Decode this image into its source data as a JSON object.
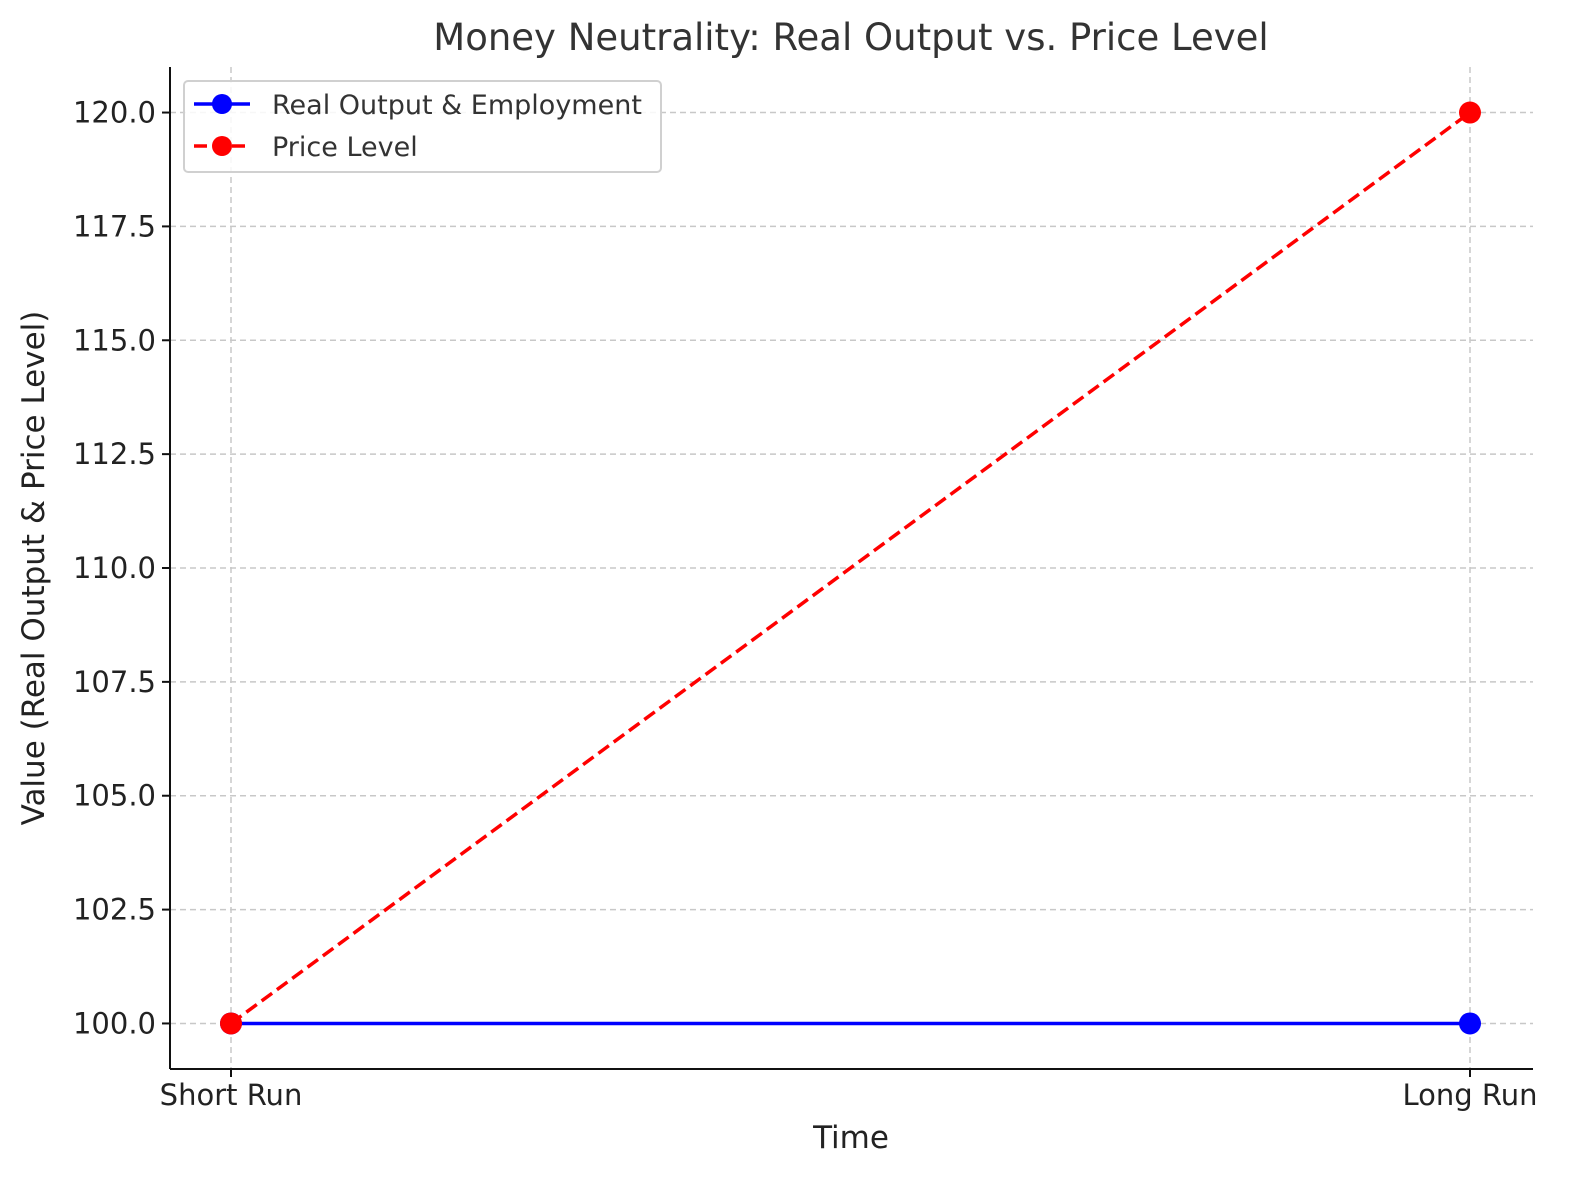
{
  "chart_data": {
    "type": "line",
    "title": "Money Neutrality: Real Output vs. Price Level",
    "xlabel": "Time",
    "ylabel": "Value (Real Output & Price Level)",
    "categories": [
      "Short Run",
      "Long Run"
    ],
    "ylim": [
      99.0,
      121.0
    ],
    "yticks": [
      100.0,
      102.5,
      105.0,
      107.5,
      110.0,
      112.5,
      115.0,
      117.5,
      120.0
    ],
    "ytick_labels": [
      "100.0",
      "102.5",
      "105.0",
      "107.5",
      "110.0",
      "112.5",
      "115.0",
      "117.5",
      "120.0"
    ],
    "grid": true,
    "legend_position": "top-left",
    "series": [
      {
        "name": "Real Output & Employment",
        "values": [
          100,
          100
        ],
        "color": "#0000ff",
        "line_style": "solid",
        "marker": "circle"
      },
      {
        "name": "Price Level",
        "values": [
          100,
          120
        ],
        "color": "#ff0000",
        "line_style": "dashed",
        "marker": "circle"
      }
    ]
  }
}
